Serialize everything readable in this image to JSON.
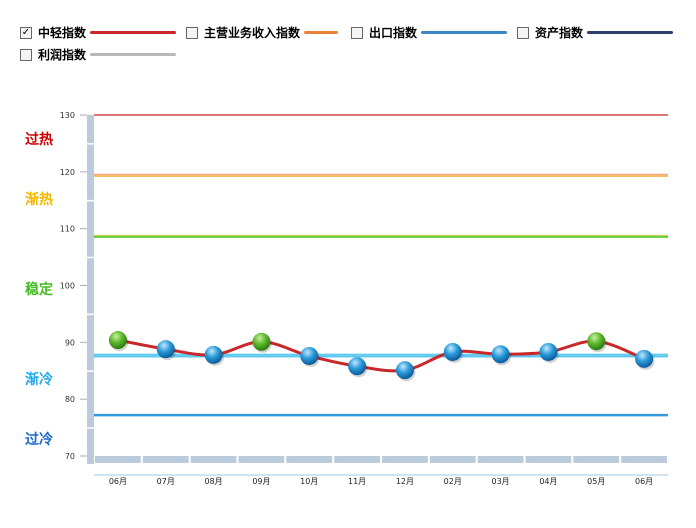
{
  "legend": [
    {
      "label": "中轻指数",
      "color": "#c8282a",
      "checked": true
    },
    {
      "label": "主营业务收入指数",
      "color": "#e8843a",
      "checked": false
    },
    {
      "label": "出口指数",
      "color": "#3a86c4",
      "checked": false
    },
    {
      "label": "资产指数",
      "color": "#2a3f6e",
      "checked": false
    },
    {
      "label": "利润指数",
      "color": "#b8b8b8",
      "checked": false
    }
  ],
  "zones": [
    {
      "label": "过热",
      "color": "#cc0000"
    },
    {
      "label": "渐热",
      "color": "#f5b800"
    },
    {
      "label": "稳定",
      "color": "#44bb22"
    },
    {
      "label": "渐冷",
      "color": "#22aaee"
    },
    {
      "label": "过冷",
      "color": "#1a66cc"
    }
  ],
  "chart_data": {
    "type": "line",
    "categories": [
      "06月",
      "07月",
      "08月",
      "09月",
      "10月",
      "11月",
      "12月",
      "02月",
      "03月",
      "04月",
      "05月",
      "06月"
    ],
    "series": [
      {
        "name": "中轻指数",
        "values": [
          90.4,
          88.8,
          87.8,
          90.1,
          87.6,
          85.8,
          85.1,
          88.3,
          87.9,
          88.3,
          90.2,
          87.1
        ],
        "color": "#c8282a"
      }
    ],
    "marker_colors": [
      "green",
      "blue",
      "blue",
      "green",
      "blue",
      "blue",
      "blue",
      "blue",
      "blue",
      "blue",
      "green",
      "blue"
    ],
    "threshold_lines": [
      {
        "value": 130,
        "color": "#cc2222"
      },
      {
        "value": 119.3,
        "color": "#f5c060"
      },
      {
        "value": 108.6,
        "color": "#66cc33"
      },
      {
        "value": 87.8,
        "color": "#66ccee"
      },
      {
        "value": 77.2,
        "color": "#3399dd"
      }
    ],
    "yticks": [
      "130",
      "120",
      "110",
      "100",
      "90",
      "80",
      "70"
    ],
    "ylim": [
      70,
      130
    ],
    "grid": false
  }
}
